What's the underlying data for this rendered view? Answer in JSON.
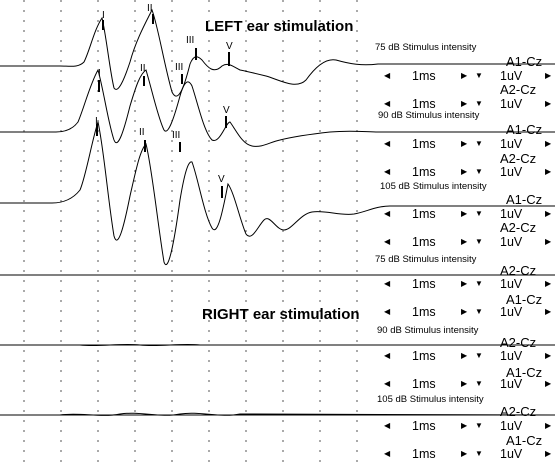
{
  "headings": {
    "left": "LEFT ear stimulation",
    "right": "RIGHT ear stimulation"
  },
  "intensities": {
    "left_75": "75 dB Stimulus intensity",
    "left_90": "90 dB Stimulus intensity",
    "left_105": "105 dB Stimulus intensity",
    "right_75": "75 dB Stimulus intensity",
    "right_90": "90 dB Stimulus intensity",
    "right_105": "105 dB Stimulus intensity"
  },
  "channels": {
    "a1": "A1-Cz",
    "a2": "A2-Cz"
  },
  "scale": {
    "time": "1ms",
    "amp": "1uV"
  },
  "arrows": {
    "left": "◀",
    "right": "▶",
    "down": "▼"
  },
  "peak_labels": {
    "i": "I",
    "ii": "II",
    "iii": "III",
    "v": "V"
  }
}
